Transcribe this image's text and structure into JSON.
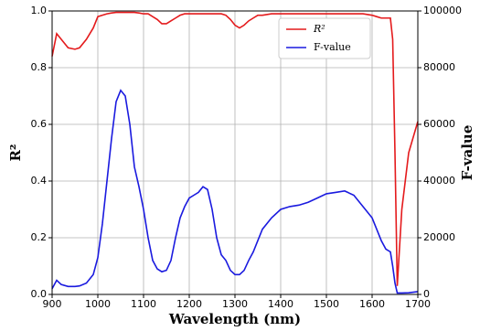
{
  "chart_data": {
    "type": "line",
    "xlabel": "Wavelength (nm)",
    "ylabel": "R²",
    "y2label": "F-value",
    "x": [
      900,
      910,
      920,
      935,
      950,
      960,
      975,
      990,
      1000,
      1010,
      1020,
      1030,
      1040,
      1050,
      1060,
      1070,
      1080,
      1090,
      1100,
      1110,
      1120,
      1130,
      1140,
      1150,
      1160,
      1170,
      1180,
      1190,
      1200,
      1210,
      1220,
      1230,
      1240,
      1250,
      1260,
      1270,
      1280,
      1290,
      1300,
      1310,
      1320,
      1330,
      1340,
      1350,
      1360,
      1380,
      1400,
      1420,
      1440,
      1460,
      1480,
      1500,
      1520,
      1540,
      1560,
      1580,
      1600,
      1610,
      1620,
      1630,
      1640,
      1645,
      1650,
      1655,
      1665,
      1680,
      1700
    ],
    "series": [
      {
        "name": "R²",
        "color": "#e41a1c",
        "axis": "y",
        "values": [
          0.84,
          0.92,
          0.9,
          0.87,
          0.865,
          0.87,
          0.9,
          0.94,
          0.98,
          0.985,
          0.99,
          0.993,
          0.995,
          0.995,
          0.995,
          0.995,
          0.995,
          0.993,
          0.99,
          0.99,
          0.98,
          0.97,
          0.955,
          0.955,
          0.965,
          0.975,
          0.985,
          0.99,
          0.99,
          0.99,
          0.99,
          0.99,
          0.99,
          0.99,
          0.99,
          0.99,
          0.985,
          0.97,
          0.95,
          0.94,
          0.95,
          0.965,
          0.975,
          0.985,
          0.985,
          0.99,
          0.99,
          0.99,
          0.99,
          0.99,
          0.99,
          0.99,
          0.99,
          0.99,
          0.99,
          0.99,
          0.985,
          0.98,
          0.975,
          0.975,
          0.975,
          0.9,
          0.5,
          0.03,
          0.3,
          0.5,
          0.61
        ]
      },
      {
        "name": "F-value",
        "color": "#1a1adf",
        "axis": "y2",
        "values": [
          2000,
          5000,
          3500,
          2800,
          2800,
          3000,
          4000,
          7000,
          13000,
          25000,
          40000,
          55000,
          68000,
          72000,
          70000,
          60000,
          45000,
          38000,
          30000,
          20000,
          12000,
          9000,
          8000,
          8500,
          12000,
          20000,
          27000,
          31000,
          34000,
          35000,
          36000,
          38000,
          37000,
          30000,
          20000,
          14000,
          12000,
          8500,
          7000,
          7000,
          8500,
          12000,
          15000,
          19000,
          23000,
          27000,
          30000,
          31000,
          31500,
          32500,
          34000,
          35500,
          36000,
          36500,
          35000,
          31000,
          27000,
          23000,
          19000,
          16000,
          15000,
          10000,
          4000,
          500,
          500,
          600,
          1000
        ]
      }
    ],
    "xlim": [
      900,
      1700
    ],
    "xticks": [
      900,
      1000,
      1100,
      1200,
      1300,
      1400,
      1500,
      1600,
      1700
    ],
    "ylim": [
      0,
      1
    ],
    "yticks": [
      {
        "value": 0,
        "label": "0.0"
      },
      0.2,
      0.4,
      0.6,
      0.8,
      {
        "value": 1,
        "label": "1.0"
      }
    ],
    "y2lim": [
      0,
      100000
    ],
    "y2ticks": [
      0,
      20000,
      40000,
      60000,
      80000,
      100000
    ],
    "grid": true,
    "legend": "upper right"
  }
}
